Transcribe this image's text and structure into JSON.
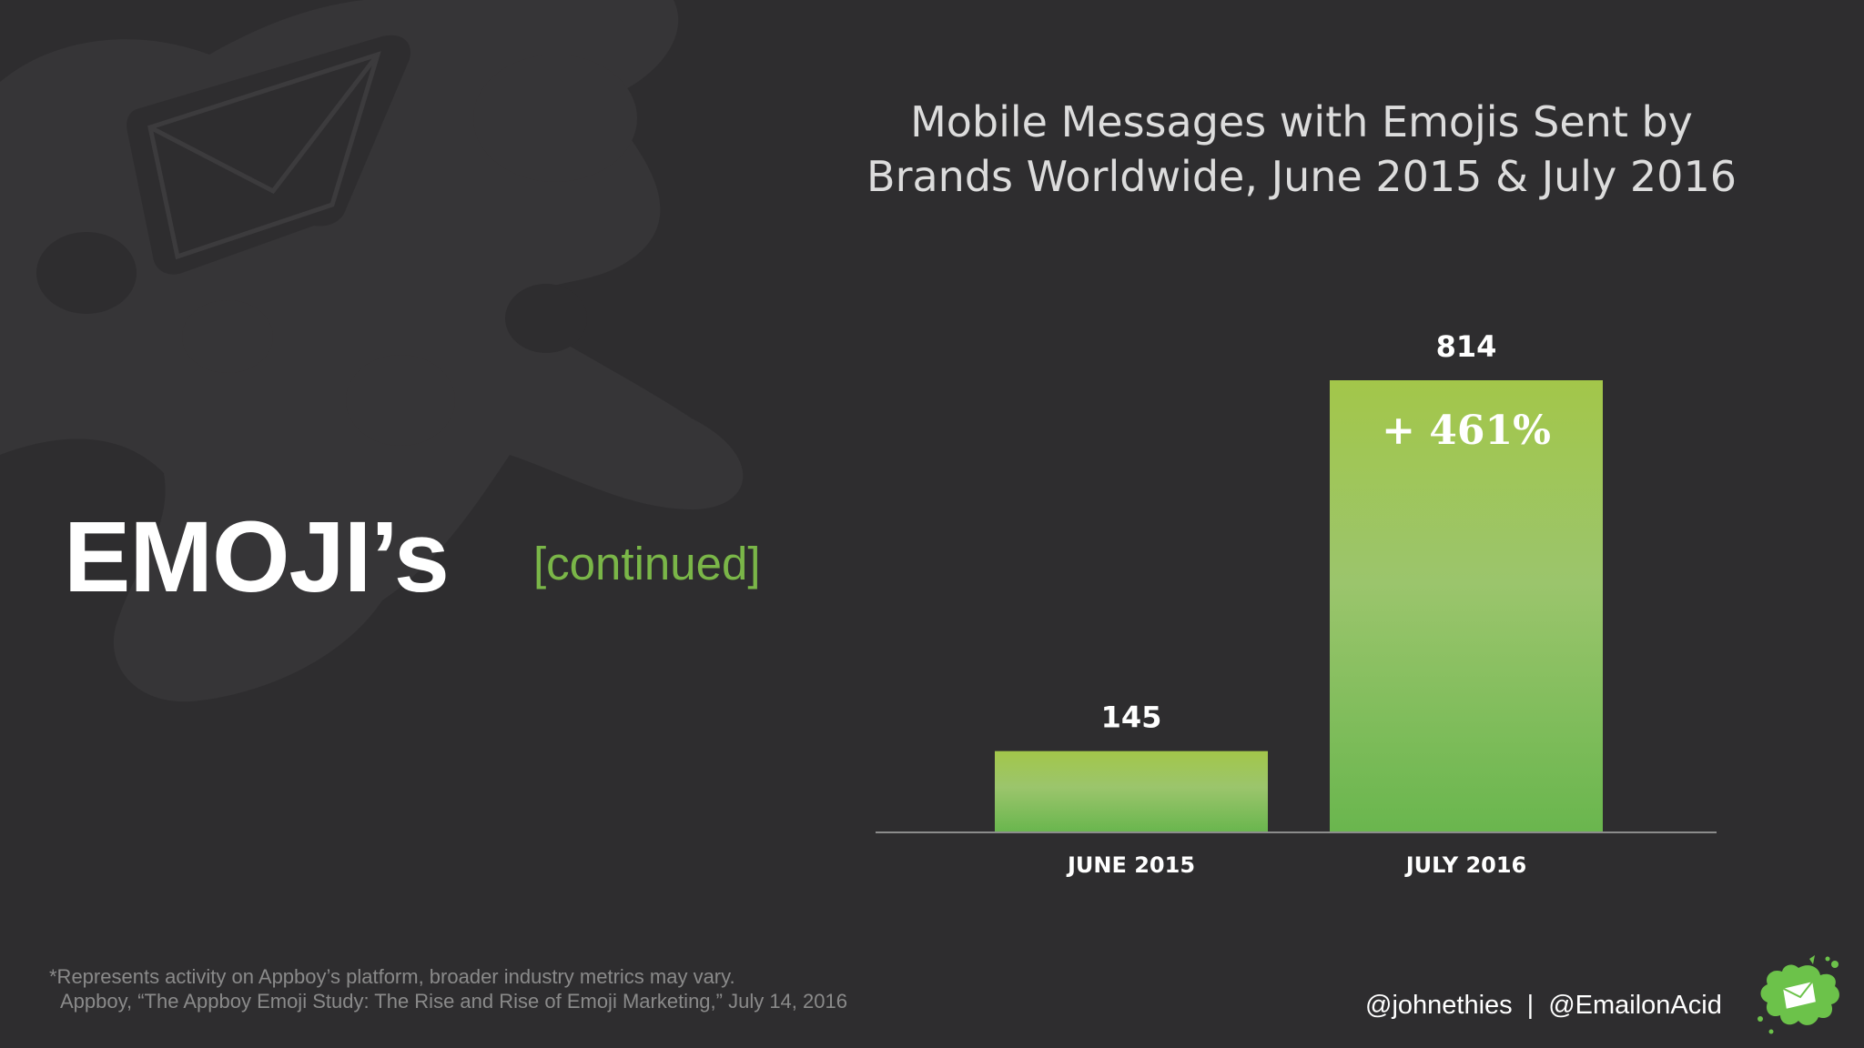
{
  "slide": {
    "heading": "EMOJI’s",
    "subheading": "[continued]",
    "footnote_line1": "*Represents activity on Appboy’s platform, broader industry metrics may vary.",
    "footnote_line2": "Appboy, “The Appboy Emoji Study: The Rise and Rise of Emoji Marketing,” July 14, 2016",
    "handle_1": "@johnethies",
    "separator": "|",
    "handle_2": "@EmailonAcid",
    "logo_icon": "envelope-splat-icon",
    "background_icon": "envelope-splat-icon"
  },
  "colors": {
    "background": "#2e2d2f",
    "accent_green": "#7ab648",
    "bar_top": "#a3c64a",
    "bar_bottom": "#6ab64e"
  },
  "chart_data": {
    "type": "bar",
    "title_line1": "Mobile Messages with Emojis Sent by",
    "title_line2": "Brands Worldwide, June 2015 & July 2016",
    "categories": [
      "JUNE 2015",
      "JULY 2016"
    ],
    "values": [
      145,
      814
    ],
    "data_labels": [
      "145",
      "814"
    ],
    "annotation": "+ 461%",
    "ylim": [
      0,
      814
    ],
    "grid": false,
    "legend": false
  }
}
